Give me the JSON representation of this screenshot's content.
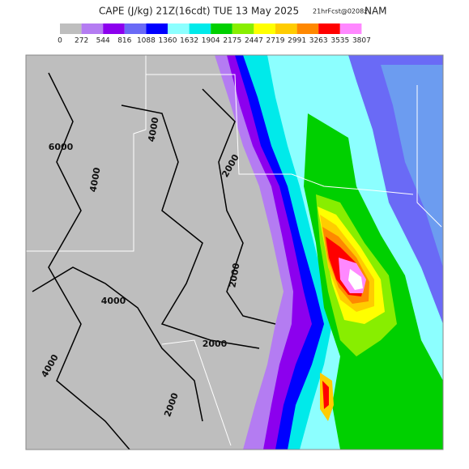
{
  "header": {
    "title": "CAPE (J/kg) 21Z(16cdt) TUE 13 May 2025",
    "forecast": "21hrFcst@0208z",
    "model": "NAM"
  },
  "legend": {
    "colors": [
      "#bebebe",
      "#b47cf2",
      "#8c00ee",
      "#6a6af6",
      "#0000ff",
      "#8cffff",
      "#00eaea",
      "#00d000",
      "#88ee00",
      "#ffff00",
      "#ffcc00",
      "#ff8800",
      "#ff0000",
      "#ff88ff"
    ],
    "labels": [
      "0",
      "272",
      "544",
      "816",
      "1088",
      "1360",
      "1632",
      "1904",
      "2175",
      "2447",
      "2719",
      "2991",
      "3263",
      "3535",
      "3807"
    ]
  },
  "map": {
    "contour_labels": [
      "6000",
      "4000",
      "4000",
      "2000",
      "2000",
      "2000",
      "4000",
      "4000",
      "2000"
    ]
  }
}
